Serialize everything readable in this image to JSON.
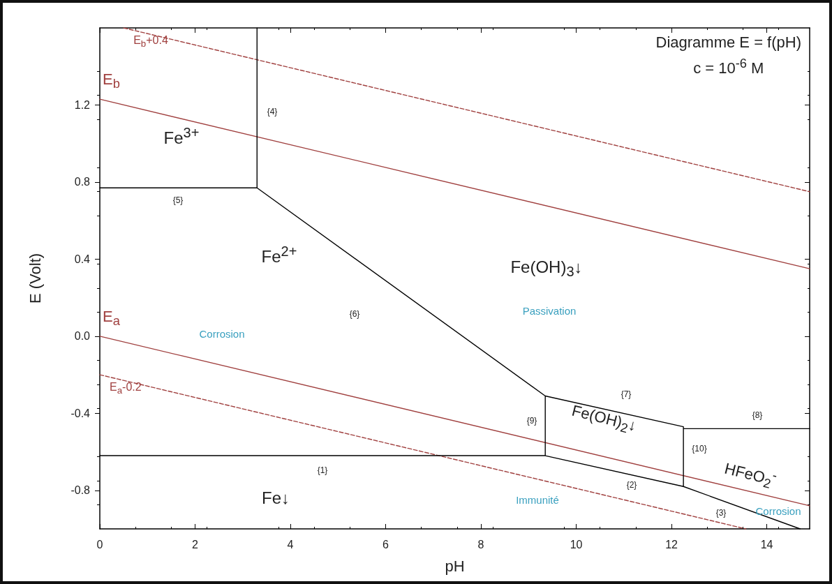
{
  "chart_data": {
    "type": "line",
    "title": "Diagramme E = f(pH)",
    "subtitle": "c = 10$^{-6}$ M",
    "xlabel": "pH",
    "ylabel": "E (Volt)",
    "xlim": [
      0,
      14.9
    ],
    "xticks": [
      0,
      2,
      4,
      6,
      8,
      10,
      12,
      14
    ],
    "ylim": [
      -1,
      1.6
    ],
    "yticks": [
      {
        "value": -0.8,
        "label": "-0.8"
      },
      {
        "value": -0.4,
        "label": "-0.4"
      },
      {
        "value": 0,
        "label": "0.0"
      },
      {
        "value": 0.4,
        "label": "0.4"
      },
      {
        "value": 0.8,
        "label": "0.8"
      },
      {
        "value": 1.2,
        "label": "1.2"
      }
    ],
    "grid": false,
    "marker": "none",
    "series": [
      {
        "name": "E$_{a}$",
        "color": "#a0403f",
        "line_style": "solid",
        "x": [
          0,
          14.9
        ],
        "values": [
          0,
          -0.88
        ]
      },
      {
        "name": "E$_{a}$-0.2",
        "color": "#a0403f",
        "line_style": "dashed",
        "x": [
          0,
          13.56
        ],
        "values": [
          -0.2,
          -1
        ]
      },
      {
        "name": "E$_{b}$",
        "color": "#a0403f",
        "line_style": "solid",
        "x": [
          0,
          14.9
        ],
        "values": [
          1.23,
          0.35
        ]
      },
      {
        "name": "E$_{b}$+0.4",
        "color": "#a0403f",
        "line_style": "dashed",
        "x": [
          0.5,
          14.9
        ],
        "values": [
          1.6,
          0.75
        ]
      },
      {
        "color": "#000000",
        "line_style": "solid",
        "x": [
          0,
          3.3,
          9.35,
          12.25,
          12.25,
          14.7,
          null,
          3.3,
          3.3,
          null,
          12.25,
          14.9,
          null,
          9.35,
          9.35,
          12.25,
          null,
          0,
          9.35
        ],
        "values": [
          0.77,
          0.77,
          -0.31,
          -0.47,
          -0.78,
          -1,
          null,
          0.77,
          1.6,
          null,
          -0.48,
          -0.48,
          null,
          -0.31,
          -0.62,
          -0.78,
          null,
          -0.62,
          -0.62
        ]
      }
    ],
    "annotations": [
      "Fe$^{3+}$",
      "Fe$^{2+}$",
      "Fe(OH)$_{3}$↓",
      "Passivation",
      "Corrosion",
      "Fe↓",
      "Immunité",
      "Fe(OH)$_{2}$↓",
      "HFeO$_{2}$$^{-}$",
      "Corrosion",
      "{1}",
      "{2}",
      "{3}",
      "{4}",
      "{5}",
      "{6}",
      "{7}",
      "{8}",
      "{9}",
      "{10}"
    ]
  }
}
